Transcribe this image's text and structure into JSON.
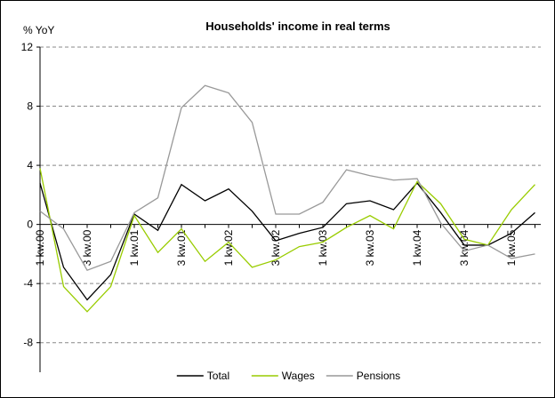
{
  "chart_data": {
    "type": "line",
    "title": "Households' income in real terms",
    "y_label": "% YoY",
    "categories": [
      "1 kw.00",
      null,
      "3 kw.00",
      null,
      "1 kw.01",
      null,
      "3 kw.01",
      null,
      "1 kw.02",
      null,
      "3 kw.02",
      null,
      "1 kw.03",
      null,
      "3 kw.03",
      null,
      "1 kw.04",
      null,
      "3 kw.04",
      null,
      "1 kw.05",
      null
    ],
    "series": [
      {
        "name": "Total",
        "color": "#000000",
        "values": [
          2.8,
          -2.9,
          -5.1,
          -3.4,
          0.7,
          -0.4,
          2.7,
          1.6,
          2.4,
          0.9,
          -1.1,
          -0.6,
          -0.2,
          1.4,
          1.6,
          1.0,
          2.8,
          0.8,
          -1.4,
          -1.4,
          -0.6,
          0.8
        ]
      },
      {
        "name": "Wages",
        "color": "#99cc00",
        "values": [
          3.8,
          -4.2,
          -5.9,
          -4.2,
          0.6,
          -1.9,
          -0.3,
          -2.5,
          -1.2,
          -2.9,
          -2.4,
          -1.5,
          -1.2,
          -0.2,
          0.6,
          -0.3,
          2.9,
          1.4,
          -1.0,
          -1.4,
          1.0,
          2.7
        ]
      },
      {
        "name": "Pensions",
        "color": "#999999",
        "values": [
          0.9,
          -0.3,
          -3.1,
          -2.5,
          0.8,
          1.8,
          7.9,
          9.4,
          8.9,
          6.9,
          0.7,
          0.7,
          1.5,
          3.7,
          3.3,
          3.0,
          3.1,
          0.1,
          -1.8,
          -1.4,
          -2.3,
          -2.0
        ]
      }
    ],
    "ylim": [
      -10,
      12
    ],
    "yticks": [
      -8,
      -4,
      0,
      4,
      8,
      12
    ],
    "grid": true,
    "legend": "bottom"
  }
}
